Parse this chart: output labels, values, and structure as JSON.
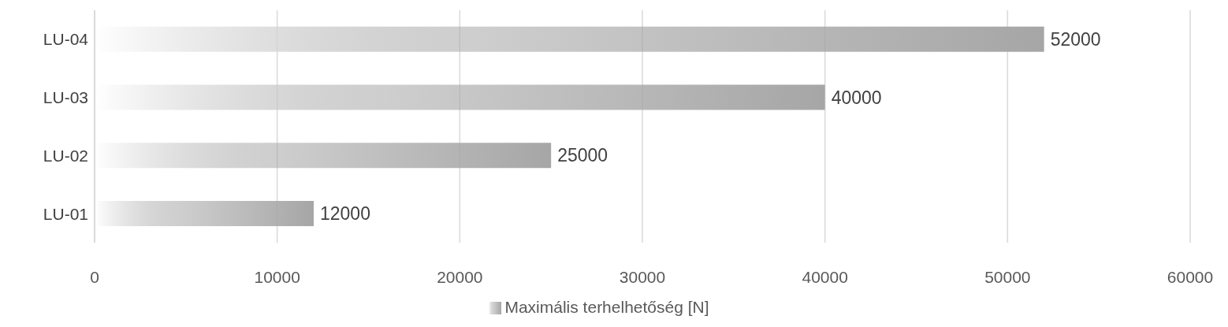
{
  "chart_data": {
    "type": "bar",
    "orientation": "horizontal",
    "categories": [
      "LU-04",
      "LU-03",
      "LU-02",
      "LU-01"
    ],
    "series": [
      {
        "name": "Maximális terhelhetőség [N]",
        "color": "#a6a6a6",
        "values": [
          52000,
          40000,
          25000,
          12000
        ]
      }
    ],
    "xlim": [
      0,
      60000
    ],
    "xticks": [
      0,
      10000,
      20000,
      30000,
      40000,
      50000,
      60000
    ],
    "grid": "x",
    "legend": "bottom",
    "data_labels": true
  }
}
